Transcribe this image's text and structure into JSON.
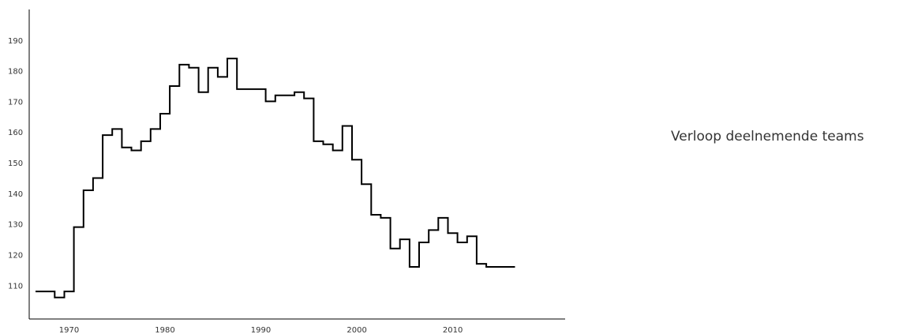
{
  "chart_data": {
    "type": "line",
    "title": "Verloop deelnemende teams",
    "xlabel": "",
    "ylabel": "",
    "step": true,
    "xlim": [
      1966.5,
      2019.5
    ],
    "ylim": [
      99,
      200
    ],
    "x_ticks": [
      {
        "value": 1970,
        "label": "1970"
      },
      {
        "value": 1980,
        "label": "1980"
      },
      {
        "value": 1990,
        "label": "1990"
      },
      {
        "value": 2000,
        "label": "2000"
      },
      {
        "value": 2010,
        "label": "2010"
      }
    ],
    "y_ticks": [
      {
        "value": 110,
        "label": "110"
      },
      {
        "value": 120,
        "label": "120"
      },
      {
        "value": 130,
        "label": "130"
      },
      {
        "value": 140,
        "label": "140"
      },
      {
        "value": 150,
        "label": "150"
      },
      {
        "value": 160,
        "label": "160"
      },
      {
        "value": 170,
        "label": "170"
      },
      {
        "value": 180,
        "label": "180"
      },
      {
        "value": 190,
        "label": "190"
      }
    ],
    "grid": false,
    "x": [
      1966.5,
      1967.5,
      1968.5,
      1969.5,
      1970.5,
      1971.5,
      1972.5,
      1973.5,
      1974.5,
      1975.5,
      1976.5,
      1977.5,
      1978.5,
      1979.5,
      1980.5,
      1981.5,
      1982.5,
      1983.5,
      1984.5,
      1985.5,
      1986.5,
      1987.5,
      1988.5,
      1989.5,
      1990.5,
      1991.5,
      1992.5,
      1993.5,
      1994.5,
      1995.5,
      1996.5,
      1997.5,
      1998.5,
      1999.5,
      2000.5,
      2001.5,
      2002.5,
      2003.5,
      2004.5,
      2005.5,
      2006.5,
      2007.5,
      2008.5,
      2009.5,
      2010.5,
      2011.5,
      2012.5,
      2013.5,
      2014.5,
      2015.5,
      2016.5
    ],
    "y": [
      108,
      108,
      106,
      108,
      129,
      141,
      145,
      159,
      161,
      155,
      154,
      157,
      161,
      166,
      175,
      182,
      181,
      173,
      181,
      178,
      184,
      174,
      174,
      174,
      170,
      172,
      172,
      173,
      171,
      157,
      156,
      154,
      162,
      151,
      143,
      133,
      132,
      122,
      125,
      116,
      124,
      128,
      132,
      127,
      124,
      126,
      117,
      116,
      116,
      116,
      116
    ]
  }
}
